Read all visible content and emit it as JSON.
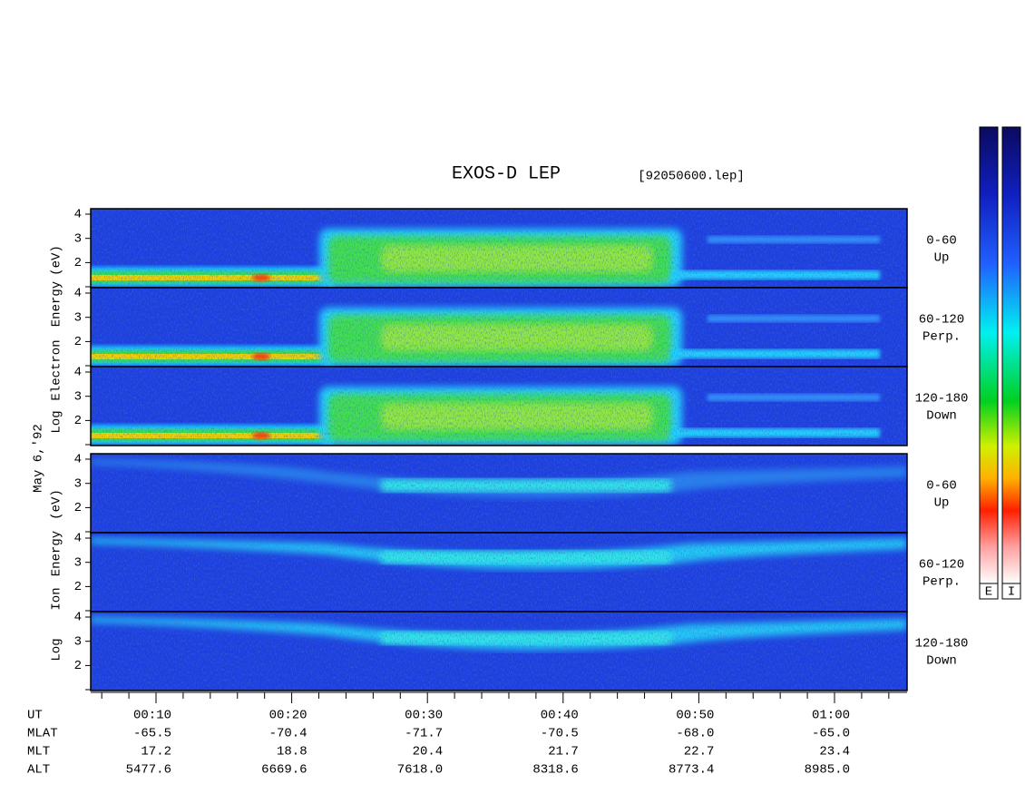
{
  "title": "EXOS-D LEP",
  "file": "[92050600.lep]",
  "electron_axis_label": [
    "Log",
    "Electron",
    "Energy",
    "(eV)"
  ],
  "date": "May 6,'92",
  "ion_axis_label": [
    "Log",
    "Ion",
    "Energy",
    "(eV)"
  ],
  "panels": [
    {
      "channel": "0-60",
      "direction": "Up",
      "yticks": [
        4,
        3,
        2
      ]
    },
    {
      "channel": "60-120",
      "direction": "Perp.",
      "yticks": [
        4,
        3,
        2
      ]
    },
    {
      "channel": "120-180",
      "direction": "Down",
      "yticks": [
        4,
        3,
        2
      ]
    },
    {
      "channel": "0-60",
      "direction": "Up",
      "yticks": [
        4,
        3,
        2
      ]
    },
    {
      "channel": "60-120",
      "direction": "Perp.",
      "yticks": [
        4,
        3,
        2
      ]
    },
    {
      "channel": "120-180",
      "direction": "Down",
      "yticks": [
        4,
        3,
        2
      ]
    }
  ],
  "time_table": {
    "rows": [
      {
        "label": "UT",
        "values": [
          "00:10",
          "00:20",
          "00:30",
          "00:40",
          "00:50",
          "01:00"
        ]
      },
      {
        "label": "MLAT",
        "values": [
          "-65.5",
          "-70.4",
          "-71.7",
          "-70.5",
          "-68.0",
          "-65.0"
        ]
      },
      {
        "label": "MLT",
        "values": [
          "17.2",
          "18.8",
          "20.4",
          "21.7",
          "22.7",
          "23.4"
        ]
      },
      {
        "label": "ALT",
        "values": [
          "5477.6",
          "6669.6",
          "7618.0",
          "8318.6",
          "8773.4",
          "8985.0"
        ]
      }
    ]
  },
  "colorbar_labels": [
    "E",
    "I"
  ]
}
